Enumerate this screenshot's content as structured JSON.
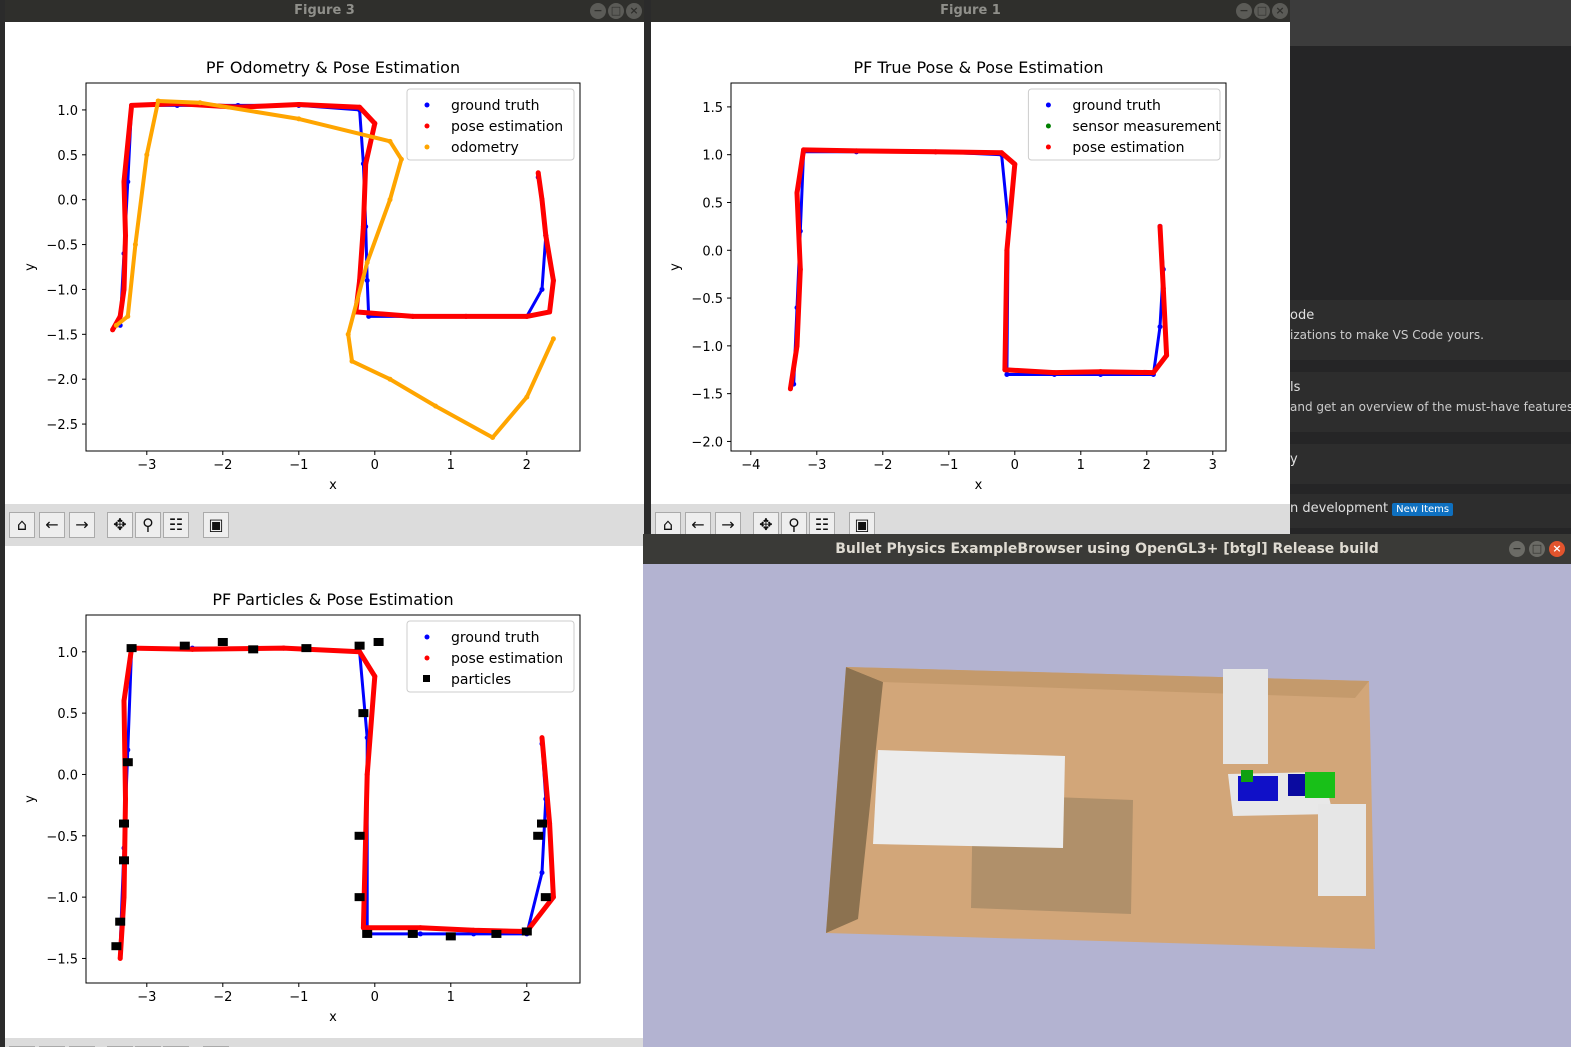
{
  "fig3": {
    "window_title": "Figure 3",
    "chart_data": {
      "type": "scatter",
      "title": "PF Odometry & Pose Estimation",
      "xlabel": "x",
      "ylabel": "y",
      "xlim": [
        -3.8,
        2.7
      ],
      "ylim": [
        -2.8,
        1.3
      ],
      "xticks": [
        -3,
        -2,
        -1,
        0,
        1,
        2
      ],
      "yticks": [
        1.0,
        0.5,
        0.0,
        -0.5,
        -1.0,
        -1.5,
        -2.0,
        -2.5
      ],
      "legend_position": "top-right",
      "series": [
        {
          "name": "ground truth",
          "color": "#0000ff",
          "x": [
            -3.35,
            -3.3,
            -3.25,
            -3.2,
            -2.6,
            -1.8,
            -1.0,
            -0.2,
            -0.15,
            -0.12,
            -0.1,
            -0.08,
            0.5,
            1.2,
            2.0,
            2.2,
            2.25,
            2.2,
            2.15
          ],
          "y": [
            -1.4,
            -0.6,
            0.2,
            1.05,
            1.05,
            1.05,
            1.05,
            1.0,
            0.4,
            -0.3,
            -0.9,
            -1.3,
            -1.3,
            -1.3,
            -1.3,
            -1.0,
            -0.4,
            0.0,
            0.25
          ]
        },
        {
          "name": "pose estimation",
          "color": "#ff0000",
          "x": [
            -3.45,
            -3.35,
            -3.3,
            -3.28,
            -3.3,
            -3.2,
            -2.6,
            -1.8,
            -1.0,
            -0.2,
            0.0,
            -0.12,
            -0.15,
            -0.2,
            -0.25,
            0.5,
            1.2,
            2.0,
            2.3,
            2.35,
            2.25,
            2.2,
            2.15
          ],
          "y": [
            -1.45,
            -1.3,
            -1.0,
            -0.4,
            0.2,
            1.05,
            1.07,
            1.03,
            1.06,
            1.03,
            0.85,
            0.4,
            -0.3,
            -0.9,
            -1.25,
            -1.3,
            -1.3,
            -1.3,
            -1.25,
            -0.9,
            -0.4,
            0.0,
            0.3
          ]
        },
        {
          "name": "odometry",
          "color": "#ffa500",
          "x": [
            -3.4,
            -3.25,
            -3.15,
            -3.0,
            -2.85,
            -2.3,
            -1.0,
            0.2,
            0.35,
            0.2,
            -0.1,
            -0.35,
            -0.3,
            0.2,
            0.8,
            1.55,
            2.0,
            2.35
          ],
          "y": [
            -1.4,
            -1.3,
            -0.5,
            0.5,
            1.1,
            1.08,
            0.9,
            0.65,
            0.45,
            0.0,
            -0.7,
            -1.5,
            -1.8,
            -2.0,
            -2.3,
            -2.65,
            -2.2,
            -1.55
          ]
        }
      ]
    },
    "toolbar": [
      "⌂",
      "←",
      "→",
      "✥",
      "⚲",
      "☷",
      "▣"
    ]
  },
  "fig1": {
    "window_title": "Figure 1",
    "chart_data": {
      "type": "scatter",
      "title": "PF True Pose & Pose Estimation",
      "xlabel": "x",
      "ylabel": "y",
      "xlim": [
        -4.3,
        3.2
      ],
      "ylim": [
        -2.1,
        1.75
      ],
      "xticks": [
        -4,
        -3,
        -2,
        -1,
        0,
        1,
        2,
        3
      ],
      "yticks": [
        1.5,
        1.0,
        0.5,
        0.0,
        -0.5,
        -1.0,
        -1.5,
        -2.0
      ],
      "legend_position": "top-right",
      "series": [
        {
          "name": "ground truth",
          "color": "#0000ff",
          "x": [
            -3.35,
            -3.3,
            -3.25,
            -3.2,
            -2.4,
            -1.2,
            -0.2,
            -0.1,
            -0.12,
            0.6,
            1.3,
            2.1,
            2.2,
            2.25,
            2.2
          ],
          "y": [
            -1.4,
            -0.6,
            0.2,
            1.03,
            1.03,
            1.03,
            1.0,
            0.3,
            -1.3,
            -1.3,
            -1.3,
            -1.3,
            -0.8,
            -0.2,
            0.25
          ]
        },
        {
          "name": "sensor measurement",
          "color": "#008000",
          "x": [],
          "y": []
        },
        {
          "name": "pose estimation",
          "color": "#ff0000",
          "x": [
            -3.4,
            -3.3,
            -3.25,
            -3.3,
            -3.2,
            -2.4,
            -1.2,
            -0.2,
            0.0,
            -0.12,
            -0.15,
            0.6,
            1.3,
            2.1,
            2.3,
            2.25,
            2.2
          ],
          "y": [
            -1.45,
            -1.0,
            -0.2,
            0.6,
            1.05,
            1.04,
            1.03,
            1.02,
            0.9,
            0.0,
            -1.25,
            -1.28,
            -1.27,
            -1.28,
            -1.1,
            -0.4,
            0.25
          ]
        }
      ]
    },
    "toolbar": [
      "⌂",
      "←",
      "→",
      "✥",
      "⚲",
      "☷",
      "▣"
    ]
  },
  "fig2": {
    "chart_data": {
      "type": "scatter",
      "title": "PF Particles & Pose Estimation",
      "xlabel": "x",
      "ylabel": "y",
      "xlim": [
        -3.8,
        2.7
      ],
      "ylim": [
        -1.7,
        1.3
      ],
      "xticks": [
        -3,
        -2,
        -1,
        0,
        1,
        2
      ],
      "yticks": [
        1.0,
        0.5,
        0.0,
        -0.5,
        -1.0,
        -1.5
      ],
      "legend_position": "top-right",
      "series": [
        {
          "name": "ground truth",
          "color": "#0000ff",
          "x": [
            -3.35,
            -3.3,
            -3.25,
            -3.2,
            -2.4,
            -1.2,
            -0.2,
            -0.1,
            -0.1,
            0.6,
            1.3,
            2.0,
            2.2,
            2.25,
            2.2
          ],
          "y": [
            -1.4,
            -0.6,
            0.2,
            1.03,
            1.03,
            1.03,
            1.0,
            0.3,
            -1.3,
            -1.3,
            -1.3,
            -1.3,
            -0.8,
            -0.2,
            0.25
          ]
        },
        {
          "name": "pose estimation",
          "color": "#ff0000",
          "x": [
            -3.35,
            -3.3,
            -3.28,
            -3.3,
            -3.2,
            -2.4,
            -1.2,
            -0.2,
            0.0,
            -0.1,
            -0.15,
            0.6,
            1.3,
            2.0,
            2.35,
            2.3,
            2.2
          ],
          "y": [
            -1.5,
            -1.0,
            -0.2,
            0.6,
            1.03,
            1.02,
            1.03,
            1.0,
            0.8,
            0.0,
            -1.25,
            -1.25,
            -1.27,
            -1.28,
            -1.0,
            -0.4,
            0.3
          ]
        },
        {
          "name": "particles",
          "color": "#000000",
          "x": [
            -3.4,
            -3.35,
            -3.3,
            -3.3,
            -3.25,
            -3.2,
            -2.5,
            -2.0,
            -1.6,
            -0.9,
            -0.2,
            0.05,
            -0.15,
            -0.2,
            -0.2,
            -0.1,
            0.5,
            1.0,
            1.6,
            2.0,
            2.25,
            2.2,
            2.15
          ],
          "y": [
            -1.4,
            -1.2,
            -0.7,
            -0.4,
            0.1,
            1.03,
            1.05,
            1.08,
            1.02,
            1.03,
            1.05,
            1.08,
            0.5,
            -0.5,
            -1.0,
            -1.3,
            -1.3,
            -1.32,
            -1.3,
            -1.28,
            -1.0,
            -0.4,
            -0.5
          ]
        }
      ]
    },
    "toolbar": [
      "⌂",
      "←",
      "→",
      "✥",
      "⚲",
      "☷",
      "▣"
    ]
  },
  "bullet": {
    "window_title": "Bullet Physics ExampleBrowser using OpenGL3+ [btgl] Release build"
  },
  "vscode": {
    "item1_title": "ode",
    "item1_desc": "izations to make VS Code yours.",
    "item2_title": "ls",
    "item2_desc": "and get an overview of the must-have features.",
    "item3_title": "y",
    "item4_title": "n development",
    "item4_badge": "New Items"
  },
  "colors": {
    "ground_truth": "#0000ff",
    "pose_estimation": "#ff0000",
    "odometry": "#ffa500",
    "sensor": "#008000",
    "particles": "#000000"
  }
}
